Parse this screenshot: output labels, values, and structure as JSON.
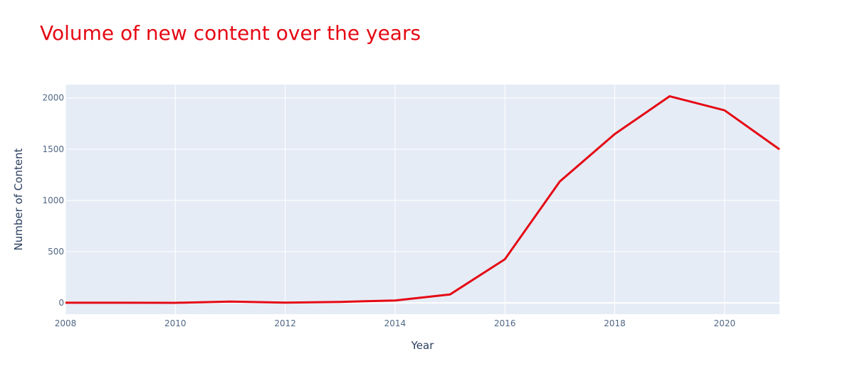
{
  "colors": {
    "accent": "#e50914",
    "plot_background": "#e5ecf6",
    "grid": "#ffffff",
    "text": "#506784"
  },
  "chart_data": {
    "type": "line",
    "title": "Volume of new content over the years",
    "xlabel": "Year",
    "ylabel": "Number of Content",
    "xlim": [
      2008,
      2021
    ],
    "ylim": [
      -110,
      2130
    ],
    "x_ticks": [
      "2008",
      "2010",
      "2012",
      "2014",
      "2016",
      "2018",
      "2020"
    ],
    "y_ticks": [
      "0",
      "500",
      "1000",
      "1500",
      "2000"
    ],
    "grid": true,
    "x": [
      2008,
      2009,
      2010,
      2011,
      2012,
      2013,
      2014,
      2015,
      2016,
      2017,
      2018,
      2019,
      2020,
      2021
    ],
    "series": [
      {
        "values": [
          2,
          2,
          1,
          13,
          3,
          10,
          24,
          82,
          426,
          1185,
          1647,
          2016,
          1879,
          1498
        ]
      }
    ]
  }
}
